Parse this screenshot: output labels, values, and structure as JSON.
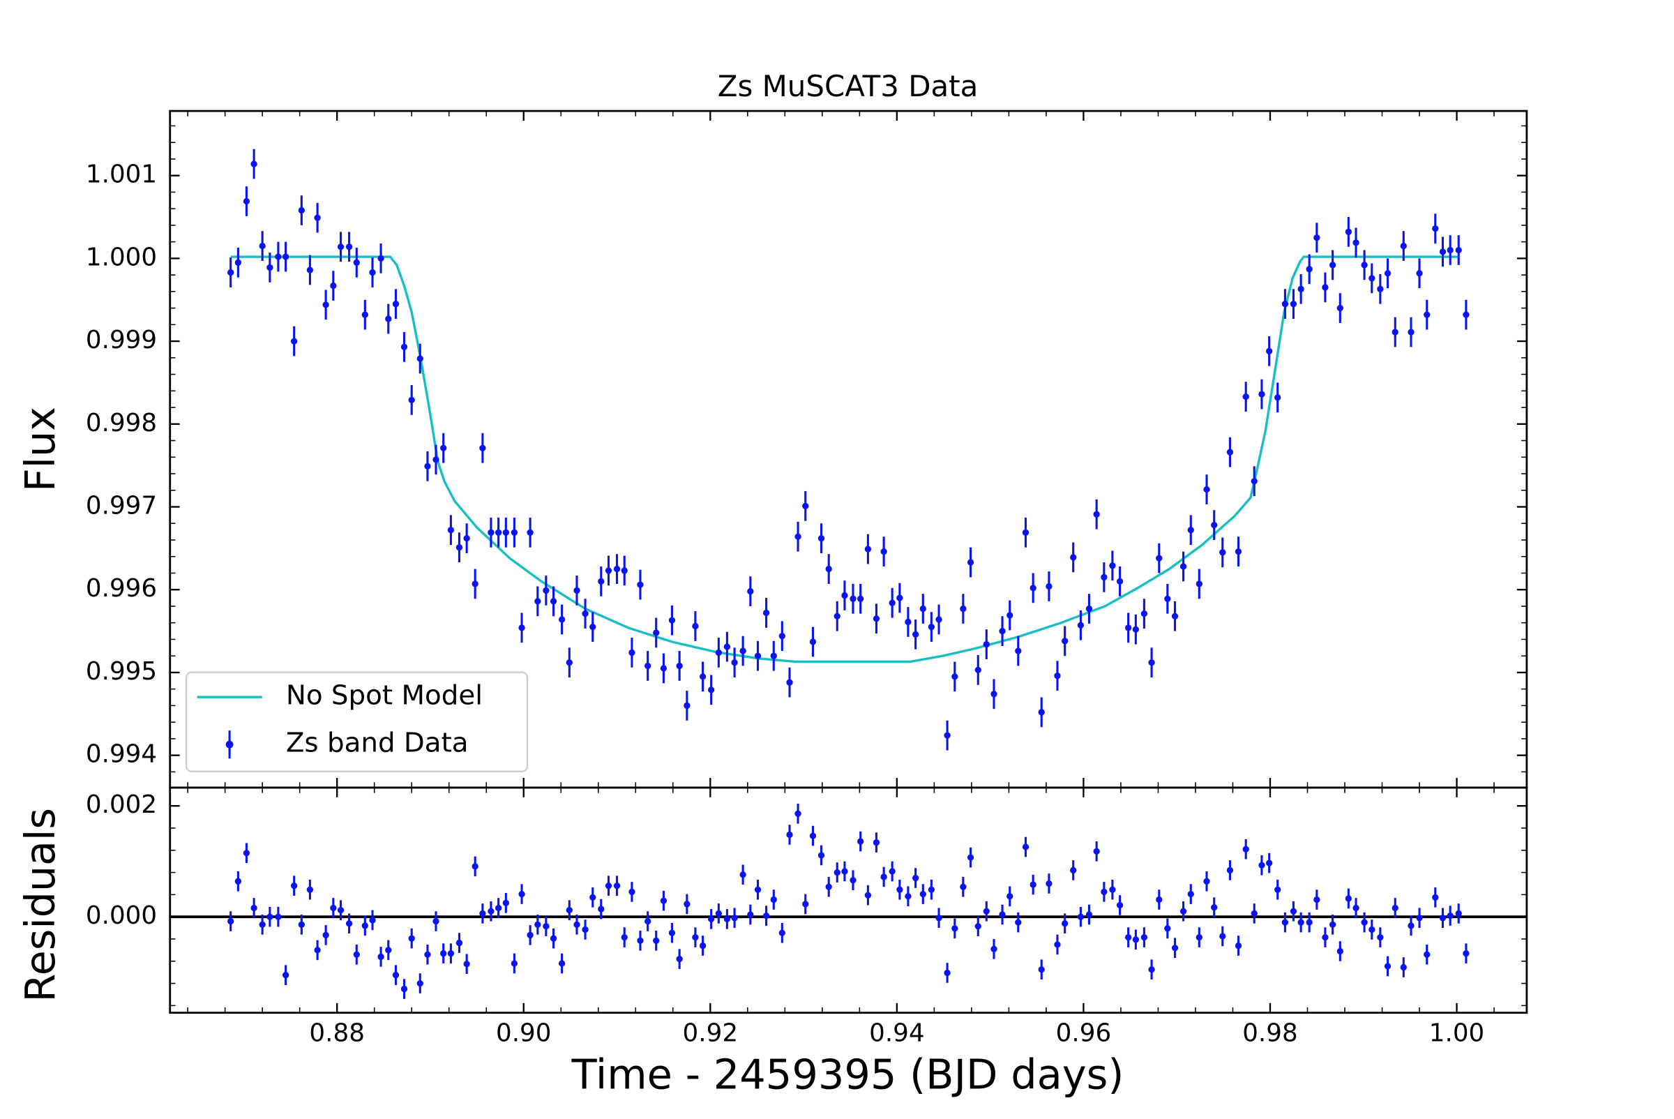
{
  "chart_data": [
    {
      "type": "scatter",
      "title": "Zs MuSCAT3 Data",
      "ylabel": "Flux",
      "xlim": [
        0.8621,
        1.0075
      ],
      "ylim": [
        0.99361,
        1.00178
      ],
      "yticks": [
        0.994,
        0.995,
        0.996,
        0.997,
        0.998,
        0.999,
        {
          "value": 1,
          "label": "1.000"
        },
        1.001
      ],
      "legend": "lower left",
      "series": [
        {
          "name": "No Spot Model",
          "type": "line",
          "color": "#17bfc4",
          "x": [
            0.8686,
            0.8857,
            0.8864,
            0.8872,
            0.888,
            0.8889,
            0.8899,
            0.8908,
            0.8915,
            0.8926,
            0.895,
            0.8985,
            0.9019,
            0.9066,
            0.9112,
            0.9159,
            0.9205,
            0.9251,
            0.9292,
            0.9414,
            0.9449,
            0.9484,
            0.953,
            0.9576,
            0.9623,
            0.9658,
            0.9692,
            0.9727,
            0.9762,
            0.9779,
            0.9785,
            0.9795,
            0.9805,
            0.9815,
            0.9824,
            0.9832,
            0.9836,
            1.0002
          ],
          "values": [
            1.00002,
            1.00002,
            0.99992,
            0.99967,
            0.99935,
            0.99883,
            0.99818,
            0.99755,
            0.99731,
            0.99707,
            0.99675,
            0.99638,
            0.9961,
            0.99577,
            0.99554,
            0.99537,
            0.99525,
            0.99517,
            0.99513,
            0.99513,
            0.9952,
            0.99529,
            0.99543,
            0.9956,
            0.9958,
            0.99602,
            0.99625,
            0.99654,
            0.99689,
            0.99711,
            0.9974,
            0.99792,
            0.99863,
            0.99935,
            0.99976,
            0.99996,
            1.00002,
            1.00002
          ]
        },
        {
          "name": "Zs band Data",
          "type": "errorbar",
          "color": "#0a14f0",
          "yerr": 0.00018,
          "x": [
            0.8686,
            0.8694,
            0.8703,
            0.8711,
            0.872,
            0.8728,
            0.8737,
            0.8745,
            0.8754,
            0.8762,
            0.8771,
            0.8779,
            0.8788,
            0.8796,
            0.8804,
            0.8813,
            0.8821,
            0.883,
            0.8838,
            0.8847,
            0.8855,
            0.8863,
            0.8872,
            0.888,
            0.8889,
            0.8897,
            0.8906,
            0.8914,
            0.8922,
            0.8931,
            0.8939,
            0.8948,
            0.8956,
            0.8965,
            0.8973,
            0.8981,
            0.899,
            0.8998,
            0.9007,
            0.9015,
            0.9024,
            0.9032,
            0.9041,
            0.9049,
            0.9057,
            0.9066,
            0.9074,
            0.9083,
            0.9091,
            0.91,
            0.9108,
            0.9116,
            0.9125,
            0.9133,
            0.9142,
            0.915,
            0.9159,
            0.9167,
            0.9175,
            0.9184,
            0.9192,
            0.9201,
            0.9209,
            0.9218,
            0.9226,
            0.9235,
            0.9243,
            0.9251,
            0.926,
            0.9268,
            0.9277,
            0.9285,
            0.9294,
            0.9302,
            0.931,
            0.9319,
            0.9327,
            0.9336,
            0.9344,
            0.9353,
            0.9361,
            0.9369,
            0.9378,
            0.9386,
            0.9395,
            0.9403,
            0.9412,
            0.942,
            0.9428,
            0.9437,
            0.9445,
            0.9454,
            0.9462,
            0.9471,
            0.9479,
            0.9487,
            0.9496,
            0.9504,
            0.9513,
            0.9521,
            0.953,
            0.9538,
            0.9546,
            0.9555,
            0.9563,
            0.9572,
            0.958,
            0.9589,
            0.9597,
            0.9606,
            0.9614,
            0.9622,
            0.9631,
            0.9639,
            0.9648,
            0.9656,
            0.9665,
            0.9673,
            0.9681,
            0.969,
            0.9698,
            0.9707,
            0.9715,
            0.9724,
            0.9732,
            0.974,
            0.9749,
            0.9757,
            0.9766,
            0.9774,
            0.9783,
            0.9791,
            0.9799,
            0.9808,
            0.9816,
            0.9825,
            0.9833,
            0.9842,
            0.985,
            0.9859,
            0.9867,
            0.9875,
            0.9884,
            0.9892,
            0.9901,
            0.9909,
            0.9918,
            0.9926,
            0.9934,
            0.9943,
            0.9951,
            0.996,
            0.9968,
            0.9977,
            0.9985,
            0.9993,
            1.0002,
            1.001
          ],
          "values": [
            0.99983,
            0.99995,
            1.00069,
            1.00114,
            1.00015,
            0.99989,
            1.00002,
            1.00002,
            0.999,
            1.00058,
            0.99986,
            1.00049,
            0.99944,
            0.99967,
            1.00014,
            1.00014,
            0.99995,
            0.99932,
            0.99983,
            1.0,
            0.99927,
            0.99945,
            0.99893,
            0.99829,
            0.99879,
            0.99749,
            0.99757,
            0.99771,
            0.99672,
            0.99651,
            0.99662,
            0.99607,
            0.99771,
            0.99669,
            0.99669,
            0.99669,
            0.99669,
            0.99554,
            0.99669,
            0.99586,
            0.99599,
            0.99586,
            0.99564,
            0.99512,
            0.99599,
            0.99571,
            0.99555,
            0.9961,
            0.99623,
            0.99625,
            0.99623,
            0.99524,
            0.99606,
            0.99508,
            0.99548,
            0.99505,
            0.99563,
            0.99508,
            0.9946,
            0.99556,
            0.99495,
            0.99479,
            0.99524,
            0.99531,
            0.99512,
            0.99526,
            0.99598,
            0.9952,
            0.99572,
            0.9952,
            0.99544,
            0.99488,
            0.99664,
            0.99701,
            0.99537,
            0.99662,
            0.99625,
            0.99568,
            0.99593,
            0.99589,
            0.99589,
            0.99649,
            0.99565,
            0.99646,
            0.99584,
            0.9959,
            0.99561,
            0.99546,
            0.99577,
            0.99555,
            0.99564,
            0.99424,
            0.99495,
            0.99577,
            0.99633,
            0.99503,
            0.99534,
            0.99474,
            0.9955,
            0.99569,
            0.99526,
            0.99669,
            0.99602,
            0.99452,
            0.99604,
            0.99496,
            0.99538,
            0.99639,
            0.99557,
            0.99577,
            0.99691,
            0.99615,
            0.99629,
            0.9961,
            0.99554,
            0.99552,
            0.99571,
            0.99512,
            0.99638,
            0.99589,
            0.99568,
            0.99628,
            0.99672,
            0.99607,
            0.99721,
            0.99678,
            0.99645,
            0.99766,
            0.99646,
            0.99833,
            0.99731,
            0.99836,
            0.99888,
            0.99832,
            0.99945,
            0.99945,
            0.99963,
            0.99987,
            1.00025,
            0.99965,
            0.99992,
            0.9994,
            1.00032,
            1.00019,
            0.99992,
            0.99976,
            0.99963,
            0.99982,
            0.99911,
            1.00015,
            0.99911,
            0.99982,
            0.99932,
            1.00036,
            1.00008,
            1.0001,
            1.0001,
            0.99932
          ]
        }
      ]
    },
    {
      "type": "scatter",
      "ylabel": "Residuals",
      "xlabel": "Time - 2459395 (BJD days)",
      "xlim": [
        0.8621,
        1.0075
      ],
      "ylim": [
        -0.00173,
        0.00233
      ],
      "xticks": [
        0.88,
        {
          "value": 0.9,
          "label": "0.90"
        },
        0.92,
        0.94,
        0.96,
        0.98,
        {
          "value": 1,
          "label": "1.00"
        }
      ],
      "yticks": [
        {
          "value": 0,
          "label": "0.000"
        },
        0.002
      ],
      "reference_line": 0,
      "series": [
        {
          "type": "errorbar",
          "color": "#0a14f0",
          "yerr": 0.00018,
          "x": [
            0.8686,
            0.8694,
            0.8703,
            0.8711,
            0.872,
            0.8728,
            0.8737,
            0.8745,
            0.8754,
            0.8762,
            0.8771,
            0.8779,
            0.8788,
            0.8796,
            0.8804,
            0.8813,
            0.8821,
            0.883,
            0.8838,
            0.8847,
            0.8855,
            0.8863,
            0.8872,
            0.888,
            0.8889,
            0.8897,
            0.8906,
            0.8914,
            0.8922,
            0.8931,
            0.8939,
            0.8948,
            0.8956,
            0.8965,
            0.8973,
            0.8981,
            0.899,
            0.8998,
            0.9007,
            0.9015,
            0.9024,
            0.9032,
            0.9041,
            0.9049,
            0.9057,
            0.9066,
            0.9074,
            0.9083,
            0.9091,
            0.91,
            0.9108,
            0.9116,
            0.9125,
            0.9133,
            0.9142,
            0.915,
            0.9159,
            0.9167,
            0.9175,
            0.9184,
            0.9192,
            0.9201,
            0.9209,
            0.9218,
            0.9226,
            0.9235,
            0.9243,
            0.9251,
            0.926,
            0.9268,
            0.9277,
            0.9285,
            0.9294,
            0.9302,
            0.931,
            0.9319,
            0.9327,
            0.9336,
            0.9344,
            0.9353,
            0.9361,
            0.9369,
            0.9378,
            0.9386,
            0.9395,
            0.9403,
            0.9412,
            0.942,
            0.9428,
            0.9437,
            0.9445,
            0.9454,
            0.9462,
            0.9471,
            0.9479,
            0.9487,
            0.9496,
            0.9504,
            0.9513,
            0.9521,
            0.953,
            0.9538,
            0.9546,
            0.9555,
            0.9563,
            0.9572,
            0.958,
            0.9589,
            0.9597,
            0.9606,
            0.9614,
            0.9622,
            0.9631,
            0.9639,
            0.9648,
            0.9656,
            0.9665,
            0.9673,
            0.9681,
            0.969,
            0.9698,
            0.9707,
            0.9715,
            0.9724,
            0.9732,
            0.974,
            0.9749,
            0.9757,
            0.9766,
            0.9774,
            0.9783,
            0.9791,
            0.9799,
            0.9808,
            0.9816,
            0.9825,
            0.9833,
            0.9842,
            0.985,
            0.9859,
            0.9867,
            0.9875,
            0.9884,
            0.9892,
            0.9901,
            0.9909,
            0.9918,
            0.9926,
            0.9934,
            0.9943,
            0.9951,
            0.996,
            0.9968,
            0.9977,
            0.9985,
            0.9993,
            1.0002,
            1.001
          ],
          "values": [
            -8e-05,
            0.00064,
            0.00115,
            0.00016,
            -0.00014,
            0,
            0,
            -0.00105,
            0.00056,
            -0.00014,
            0.00049,
            -0.0006,
            -0.00033,
            0.00016,
            0.00012,
            -0.00012,
            -0.00068,
            -0.00016,
            -6e-05,
            -0.00072,
            -0.0006,
            -0.00105,
            -0.0013,
            -0.00039,
            -0.0012,
            -0.00068,
            -8e-05,
            -0.00066,
            -0.00066,
            -0.00047,
            -0.00085,
            0.00091,
            6e-05,
            0.0001,
            0.00016,
            0.00025,
            -0.00084,
            0.00041,
            -0.00033,
            -0.00014,
            -0.00017,
            -0.00039,
            -0.00084,
            0.00012,
            -0.00014,
            -0.00023,
            0.00035,
            0.00014,
            0.00056,
            0.00056,
            -0.00037,
            0.00045,
            -0.00043,
            -8e-05,
            -0.00043,
            0.00029,
            -0.00029,
            -0.00076,
            0.00023,
            -0.00037,
            -0.00052,
            -4e-05,
            6e-05,
            -4e-05,
            -2e-05,
            0.00076,
            4e-05,
            0.00049,
            2e-05,
            0.00031,
            -0.00029,
            0.00148,
            0.00186,
            0.00023,
            0.00146,
            0.00111,
            0.00054,
            0.0008,
            0.00082,
            0.00066,
            0.00136,
            0.00039,
            0.00134,
            0.00072,
            0.00082,
            0.00049,
            0.00037,
            0.0007,
            0.00041,
            0.00049,
            -2e-05,
            -0.00101,
            -0.00021,
            0.00054,
            0.00107,
            -0.00017,
            0.0001,
            -0.00058,
            4e-05,
            0.00037,
            -0.0001,
            0.00126,
            0.00058,
            -0.00095,
            0.0006,
            -0.0005,
            -0.00012,
            0.00084,
            0,
            4e-05,
            0.00118,
            0.00045,
            0.00049,
            0.00021,
            -0.00037,
            -0.00041,
            -0.00037,
            -0.00095,
            0.00031,
            -0.00021,
            -0.00056,
            0.0001,
            0.00041,
            -0.00037,
            0.00064,
            0.00017,
            -0.00035,
            0.00084,
            -0.00052,
            0.00122,
            6e-05,
            0.00093,
            0.00097,
            0.00049,
            -0.0001,
            0.0001,
            -0.0001,
            -0.0001,
            0.00031,
            -0.00037,
            -0.00014,
            -0.00062,
            0.00033,
            0.00016,
            -0.0001,
            -0.00023,
            -0.00037,
            -0.00089,
            0.00016,
            -0.00091,
            -0.00016,
            -2e-05,
            -0.00068,
            0.00035,
            -2e-05,
            2e-05,
            6e-05,
            -0.00066
          ]
        }
      ]
    }
  ]
}
